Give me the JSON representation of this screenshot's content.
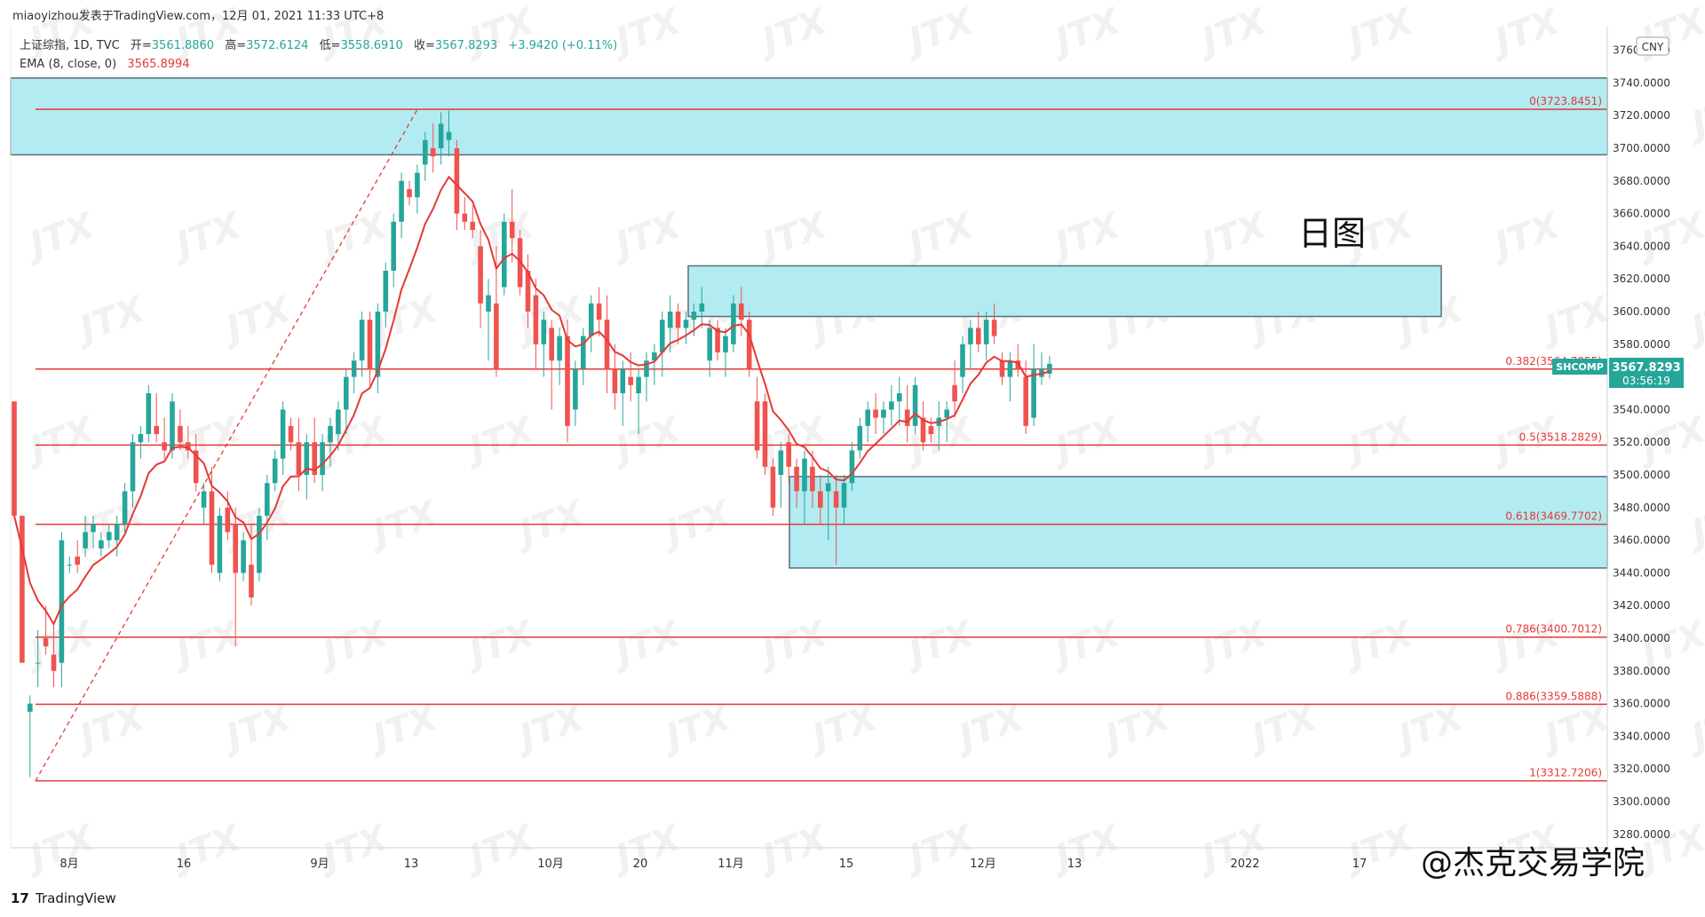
{
  "header": {
    "publish_line": "miaoyizhou发表于TradingView.com，12月 01, 2021 11:33 UTC+8",
    "symbol_line_prefix": "上证综指, 1D, TVC",
    "ohlc": [
      {
        "label": "开=",
        "value": "3561.8860"
      },
      {
        "label": "高=",
        "value": "3572.6124"
      },
      {
        "label": "低=",
        "value": "3558.6910"
      },
      {
        "label": "收=",
        "value": "3567.8293"
      }
    ],
    "change": "+3.9420 (+0.11%)",
    "ema_label": "EMA (8, close, 0)",
    "ema_value": "3565.8994"
  },
  "currency": "CNY",
  "annotation": "日图",
  "watermark_text": "JTX",
  "price_tag": {
    "symbol": "SHCOMP",
    "price": "3567.8293",
    "countdown": "03:56:19"
  },
  "footer": {
    "tradingview_label": "TradingView",
    "academy_label": "@杰克交易学院"
  },
  "colors": {
    "up": "#26a69a",
    "down": "#ef5350",
    "zone_fill": "#b2ebf2",
    "zone_border": "#5d6d78",
    "line": "#e53935"
  },
  "chart_data": {
    "type": "candlestick",
    "y_axis": {
      "min": 3270,
      "max": 3770,
      "ticks": [
        3280,
        3300,
        3320,
        3340,
        3360,
        3380,
        3400,
        3420,
        3440,
        3460,
        3480,
        3500,
        3520,
        3540,
        3560,
        3580,
        3600,
        3620,
        3640,
        3660,
        3680,
        3700,
        3720,
        3740,
        3760
      ]
    },
    "x_axis_labels": [
      "8月",
      "16",
      "9月",
      "13",
      "10月",
      "20",
      "11月",
      "15",
      "12月",
      "13",
      "2022",
      "17"
    ],
    "fib_levels": [
      {
        "label": "0(3723.8451)",
        "value": 3723.8451
      },
      {
        "label": "0.382(3564.7855)",
        "value": 3564.7855
      },
      {
        "label": "0.5(3518.2829)",
        "value": 3518.2829
      },
      {
        "label": "0.618(3469.7702)",
        "value": 3469.7702
      },
      {
        "label": "0.786(3400.7012)",
        "value": 3400.7012
      },
      {
        "label": "0.886(3359.5888)",
        "value": 3359.5888
      },
      {
        "label": "1(3312.7206)",
        "value": 3312.7206
      }
    ],
    "zones": [
      {
        "name": "top-zone",
        "top": 3743,
        "bottom": 3696
      },
      {
        "name": "mid-zone",
        "top": 3628,
        "bottom": 3597
      },
      {
        "name": "low-zone",
        "top": 3499,
        "bottom": 3443
      }
    ],
    "candles": [
      [
        3545,
        3545,
        3475,
        3475
      ],
      [
        3475,
        3475,
        3385,
        3385
      ],
      [
        3355,
        3365,
        3315,
        3360
      ],
      [
        3385,
        3405,
        3370,
        3385
      ],
      [
        3400,
        3420,
        3390,
        3395
      ],
      [
        3390,
        3410,
        3370,
        3380
      ],
      [
        3385,
        3465,
        3370,
        3460
      ],
      [
        3445,
        3450,
        3440,
        3445
      ],
      [
        3450,
        3460,
        3440,
        3445
      ],
      [
        3455,
        3475,
        3450,
        3465
      ],
      [
        3465,
        3475,
        3455,
        3470
      ],
      [
        3455,
        3465,
        3450,
        3460
      ],
      [
        3460,
        3470,
        3455,
        3465
      ],
      [
        3460,
        3475,
        3450,
        3470
      ],
      [
        3470,
        3495,
        3465,
        3490
      ],
      [
        3490,
        3525,
        3480,
        3520
      ],
      [
        3520,
        3530,
        3510,
        3525
      ],
      [
        3525,
        3555,
        3520,
        3550
      ],
      [
        3530,
        3550,
        3520,
        3525
      ],
      [
        3520,
        3535,
        3510,
        3515
      ],
      [
        3515,
        3550,
        3510,
        3545
      ],
      [
        3530,
        3540,
        3515,
        3520
      ],
      [
        3520,
        3530,
        3510,
        3515
      ],
      [
        3515,
        3525,
        3490,
        3495
      ],
      [
        3480,
        3495,
        3470,
        3490
      ],
      [
        3490,
        3505,
        3440,
        3445
      ],
      [
        3440,
        3480,
        3435,
        3475
      ],
      [
        3480,
        3490,
        3460,
        3465
      ],
      [
        3470,
        3480,
        3395,
        3440
      ],
      [
        3440,
        3465,
        3435,
        3460
      ],
      [
        3445,
        3470,
        3420,
        3425
      ],
      [
        3440,
        3480,
        3435,
        3475
      ],
      [
        3475,
        3500,
        3460,
        3495
      ],
      [
        3495,
        3515,
        3490,
        3510
      ],
      [
        3510,
        3545,
        3500,
        3540
      ],
      [
        3530,
        3535,
        3515,
        3520
      ],
      [
        3520,
        3535,
        3490,
        3500
      ],
      [
        3500,
        3525,
        3485,
        3520
      ],
      [
        3520,
        3535,
        3495,
        3500
      ],
      [
        3500,
        3525,
        3490,
        3520
      ],
      [
        3520,
        3535,
        3505,
        3530
      ],
      [
        3525,
        3545,
        3515,
        3540
      ],
      [
        3540,
        3565,
        3525,
        3560
      ],
      [
        3560,
        3575,
        3550,
        3570
      ],
      [
        3570,
        3600,
        3560,
        3595
      ],
      [
        3595,
        3600,
        3555,
        3565
      ],
      [
        3560,
        3605,
        3550,
        3600
      ],
      [
        3600,
        3630,
        3590,
        3625
      ],
      [
        3625,
        3660,
        3615,
        3655
      ],
      [
        3655,
        3685,
        3645,
        3680
      ],
      [
        3675,
        3680,
        3665,
        3670
      ],
      [
        3670,
        3690,
        3660,
        3685
      ],
      [
        3690,
        3710,
        3680,
        3705
      ],
      [
        3700,
        3715,
        3685,
        3695
      ],
      [
        3700,
        3722,
        3690,
        3715
      ],
      [
        3705,
        3723,
        3695,
        3710
      ],
      [
        3700,
        3705,
        3650,
        3660
      ],
      [
        3660,
        3670,
        3650,
        3655
      ],
      [
        3655,
        3665,
        3645,
        3650
      ],
      [
        3640,
        3650,
        3590,
        3605
      ],
      [
        3600,
        3620,
        3570,
        3610
      ],
      [
        3605,
        3640,
        3560,
        3565
      ],
      [
        3615,
        3660,
        3610,
        3655
      ],
      [
        3655,
        3675,
        3630,
        3645
      ],
      [
        3645,
        3650,
        3610,
        3615
      ],
      [
        3625,
        3635,
        3590,
        3600
      ],
      [
        3610,
        3620,
        3565,
        3580
      ],
      [
        3580,
        3600,
        3560,
        3595
      ],
      [
        3590,
        3595,
        3540,
        3570
      ],
      [
        3570,
        3590,
        3555,
        3585
      ],
      [
        3585,
        3595,
        3520,
        3530
      ],
      [
        3540,
        3570,
        3530,
        3565
      ],
      [
        3565,
        3590,
        3555,
        3585
      ],
      [
        3585,
        3610,
        3575,
        3605
      ],
      [
        3605,
        3615,
        3585,
        3595
      ],
      [
        3595,
        3610,
        3550,
        3565
      ],
      [
        3565,
        3580,
        3540,
        3550
      ],
      [
        3550,
        3570,
        3530,
        3565
      ],
      [
        3560,
        3575,
        3545,
        3555
      ],
      [
        3550,
        3565,
        3525,
        3560
      ],
      [
        3560,
        3575,
        3545,
        3570
      ],
      [
        3570,
        3580,
        3555,
        3575
      ],
      [
        3575,
        3600,
        3560,
        3595
      ],
      [
        3590,
        3610,
        3575,
        3600
      ],
      [
        3600,
        3605,
        3580,
        3590
      ],
      [
        3590,
        3600,
        3580,
        3595
      ],
      [
        3595,
        3605,
        3585,
        3600
      ],
      [
        3600,
        3615,
        3590,
        3605
      ],
      [
        3570,
        3595,
        3560,
        3590
      ],
      [
        3590,
        3595,
        3570,
        3575
      ],
      [
        3575,
        3590,
        3560,
        3585
      ],
      [
        3580,
        3610,
        3575,
        3605
      ],
      [
        3605,
        3615,
        3585,
        3595
      ],
      [
        3595,
        3600,
        3560,
        3565
      ],
      [
        3545,
        3560,
        3510,
        3515
      ],
      [
        3545,
        3550,
        3500,
        3505
      ],
      [
        3505,
        3510,
        3475,
        3480
      ],
      [
        3500,
        3520,
        3480,
        3515
      ],
      [
        3520,
        3525,
        3495,
        3505
      ],
      [
        3505,
        3510,
        3480,
        3490
      ],
      [
        3490,
        3515,
        3470,
        3510
      ],
      [
        3505,
        3515,
        3480,
        3490
      ],
      [
        3490,
        3500,
        3470,
        3480
      ],
      [
        3490,
        3505,
        3460,
        3495
      ],
      [
        3490,
        3500,
        3445,
        3480
      ],
      [
        3480,
        3500,
        3470,
        3495
      ],
      [
        3495,
        3520,
        3490,
        3515
      ],
      [
        3515,
        3535,
        3510,
        3530
      ],
      [
        3530,
        3545,
        3520,
        3540
      ],
      [
        3540,
        3550,
        3525,
        3535
      ],
      [
        3535,
        3545,
        3525,
        3540
      ],
      [
        3540,
        3555,
        3530,
        3545
      ],
      [
        3545,
        3560,
        3530,
        3550
      ],
      [
        3540,
        3555,
        3520,
        3530
      ],
      [
        3530,
        3560,
        3525,
        3555
      ],
      [
        3535,
        3545,
        3515,
        3520
      ],
      [
        3530,
        3535,
        3520,
        3525
      ],
      [
        3530,
        3545,
        3515,
        3535
      ],
      [
        3535,
        3545,
        3520,
        3540
      ],
      [
        3555,
        3570,
        3535,
        3545
      ],
      [
        3560,
        3585,
        3550,
        3580
      ],
      [
        3580,
        3595,
        3565,
        3590
      ],
      [
        3590,
        3600,
        3575,
        3580
      ],
      [
        3580,
        3600,
        3570,
        3595
      ],
      [
        3595,
        3605,
        3580,
        3585
      ],
      [
        3570,
        3575,
        3555,
        3560
      ],
      [
        3560,
        3575,
        3545,
        3570
      ],
      [
        3570,
        3580,
        3560,
        3565
      ],
      [
        3560,
        3570,
        3525,
        3530
      ],
      [
        3535,
        3580,
        3530,
        3565
      ],
      [
        3560,
        3575,
        3555,
        3565
      ],
      [
        3562,
        3573,
        3559,
        3568
      ]
    ],
    "candles_format": "[open, high, low, close]"
  }
}
